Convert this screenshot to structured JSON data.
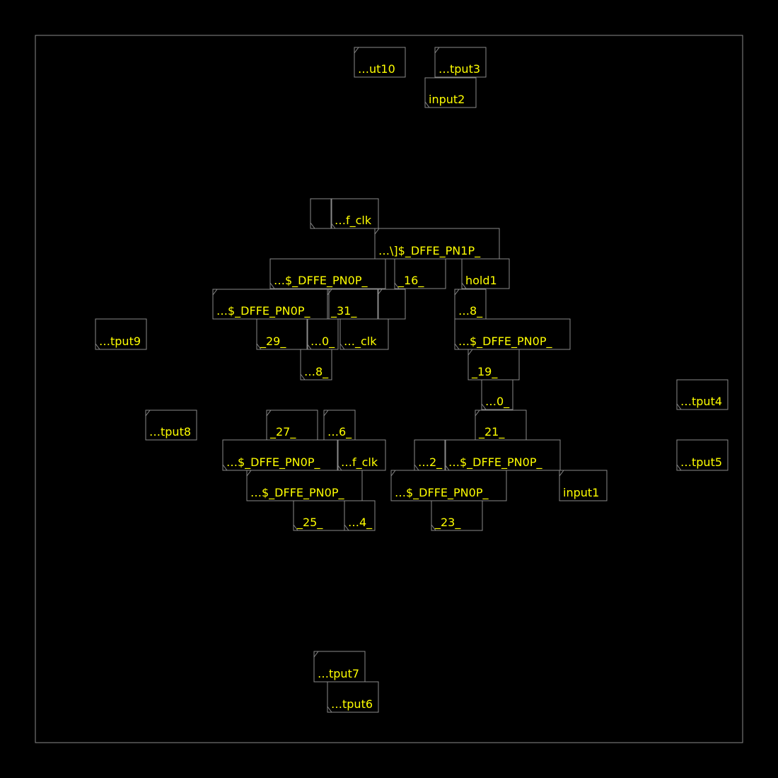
{
  "colors": {
    "background": "#000000",
    "outline": "#8a8a8a",
    "label": "#ffff00"
  },
  "cells": [
    {
      "id": "c01",
      "label": "…ut10",
      "orient": "N"
    },
    {
      "id": "c02",
      "label": "…tput3",
      "orient": "N"
    },
    {
      "id": "c03",
      "label": "input2",
      "orient": "S"
    },
    {
      "id": "c04",
      "label": "",
      "orient": "S"
    },
    {
      "id": "c05",
      "label": "…f_clk",
      "orient": "S"
    },
    {
      "id": "c06",
      "label": "…\\]$_DFFE_PN1P_",
      "orient": "N"
    },
    {
      "id": "c07",
      "label": "…$_DFFE_PN0P_",
      "orient": "S"
    },
    {
      "id": "c08",
      "label": "_16_",
      "orient": "S"
    },
    {
      "id": "c09",
      "label": "hold1",
      "orient": "S"
    },
    {
      "id": "c10",
      "label": "…$_DFFE_PN0P_",
      "orient": "N"
    },
    {
      "id": "c11",
      "label": "_31_",
      "orient": "N"
    },
    {
      "id": "c12",
      "label": "",
      "orient": "N"
    },
    {
      "id": "c13",
      "label": "…8_",
      "orient": "N"
    },
    {
      "id": "c14",
      "label": "…tput9",
      "orient": "S"
    },
    {
      "id": "c15",
      "label": "_29_",
      "orient": "S"
    },
    {
      "id": "c16",
      "label": "…0_",
      "orient": "S"
    },
    {
      "id": "c17",
      "label": "…_clk",
      "orient": "S"
    },
    {
      "id": "c18",
      "label": "…$_DFFE_PN0P_",
      "orient": "S"
    },
    {
      "id": "c19",
      "label": "…8_",
      "orient": "S"
    },
    {
      "id": "c20",
      "label": "_19_",
      "orient": "N"
    },
    {
      "id": "c21",
      "label": "…0_",
      "orient": "S"
    },
    {
      "id": "c22",
      "label": "…tput4",
      "orient": "S"
    },
    {
      "id": "c23",
      "label": "…tput8",
      "orient": "N"
    },
    {
      "id": "c24",
      "label": "_27_",
      "orient": "N"
    },
    {
      "id": "c25",
      "label": "…6_",
      "orient": "N"
    },
    {
      "id": "c26",
      "label": "_21_",
      "orient": "N"
    },
    {
      "id": "c27",
      "label": "…$_DFFE_PN0P_",
      "orient": "S"
    },
    {
      "id": "c28",
      "label": "…f_clk",
      "orient": "S"
    },
    {
      "id": "c29",
      "label": "…2_",
      "orient": "S"
    },
    {
      "id": "c30",
      "label": "…$_DFFE_PN0P_",
      "orient": "S"
    },
    {
      "id": "c31",
      "label": "…tput5",
      "orient": "S"
    },
    {
      "id": "c32",
      "label": "…$_DFFE_PN0P_",
      "orient": "N"
    },
    {
      "id": "c33",
      "label": "…$_DFFE_PN0P_",
      "orient": "N"
    },
    {
      "id": "c34",
      "label": "input1",
      "orient": "N"
    },
    {
      "id": "c35",
      "label": "_25_",
      "orient": "S"
    },
    {
      "id": "c36",
      "label": "…4_",
      "orient": "S"
    },
    {
      "id": "c37",
      "label": "_23_",
      "orient": "S"
    },
    {
      "id": "c38",
      "label": "…tput7",
      "orient": "N"
    },
    {
      "id": "c39",
      "label": "…tput6",
      "orient": "S"
    }
  ]
}
